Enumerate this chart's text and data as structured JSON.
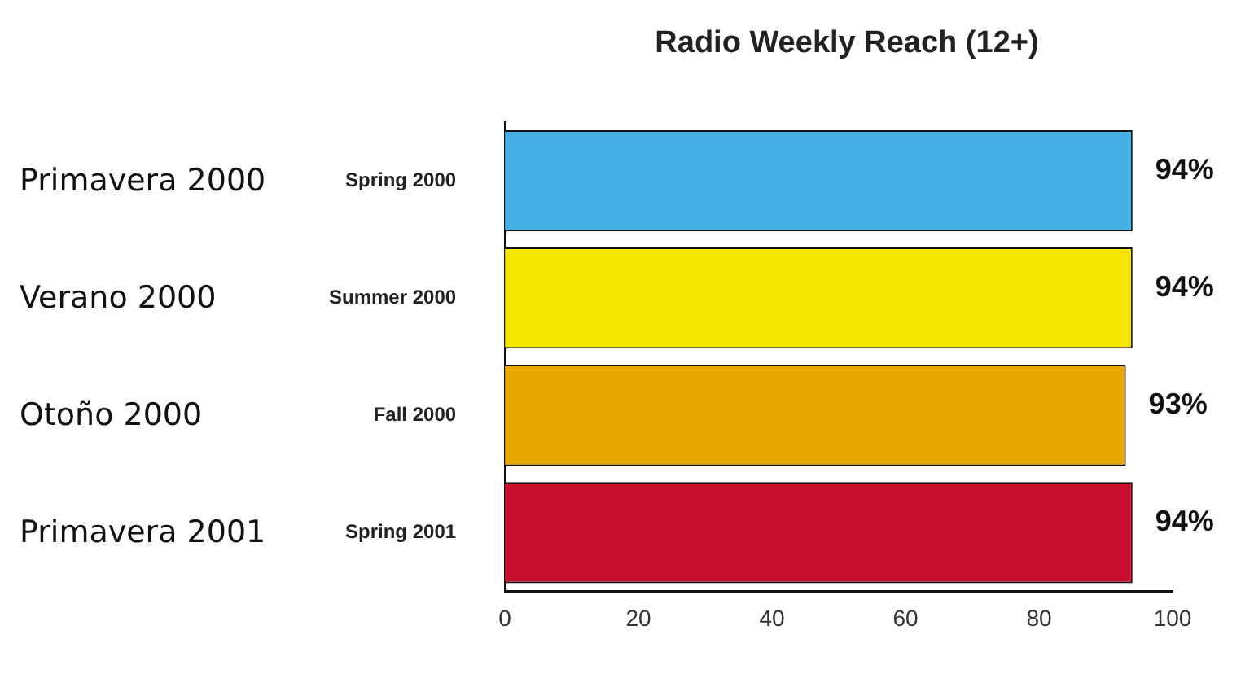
{
  "chart_data": {
    "type": "bar",
    "orientation": "horizontal",
    "title": "Radio Weekly Reach (12+)",
    "categories": [
      "Spring 2000",
      "Summer 2000",
      "Fall 2000",
      "Spring 2001"
    ],
    "values": [
      94,
      94,
      93,
      94
    ],
    "colors": [
      "#45b0e6",
      "#f5e600",
      "#e8a800",
      "#c8102e"
    ],
    "value_labels": [
      "94%",
      "94%",
      "93%",
      "94%"
    ],
    "annotations": [
      "Primavera 2000",
      "Verano 2000",
      "Otoño 2000",
      "Primavera 2001"
    ],
    "xlim": [
      0,
      100
    ],
    "xticks": [
      0,
      20,
      40,
      60,
      80,
      100
    ],
    "grid": false,
    "legend": false
  }
}
